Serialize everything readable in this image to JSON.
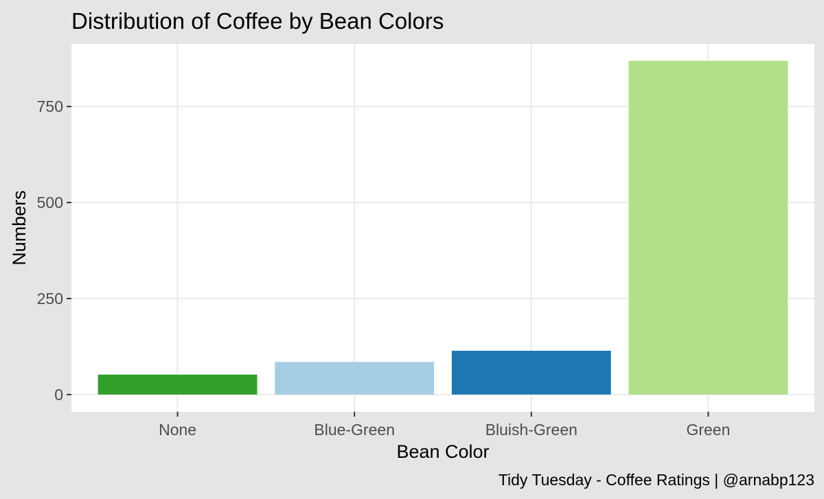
{
  "chart_data": {
    "type": "bar",
    "title": "Distribution of Coffee by Bean Colors",
    "xlabel": "Bean Color",
    "ylabel": "Numbers",
    "caption": "Tidy Tuesday - Coffee Ratings | @arnabp123",
    "categories": [
      "None",
      "Blue-Green",
      "Bluish-Green",
      "Green"
    ],
    "values": [
      52,
      85,
      114,
      869
    ],
    "colors": [
      "#33a02c",
      "#a6cee3",
      "#1f78b4",
      "#b2df8a"
    ],
    "ylim": [
      -45,
      913
    ],
    "yticks": [
      0,
      250,
      500,
      750
    ],
    "ytick_labels": [
      "0",
      "250",
      "500",
      "750"
    ],
    "grid": true,
    "legend": "none",
    "panel_background": "#ffffff",
    "plot_background": "#e5e5e5"
  }
}
